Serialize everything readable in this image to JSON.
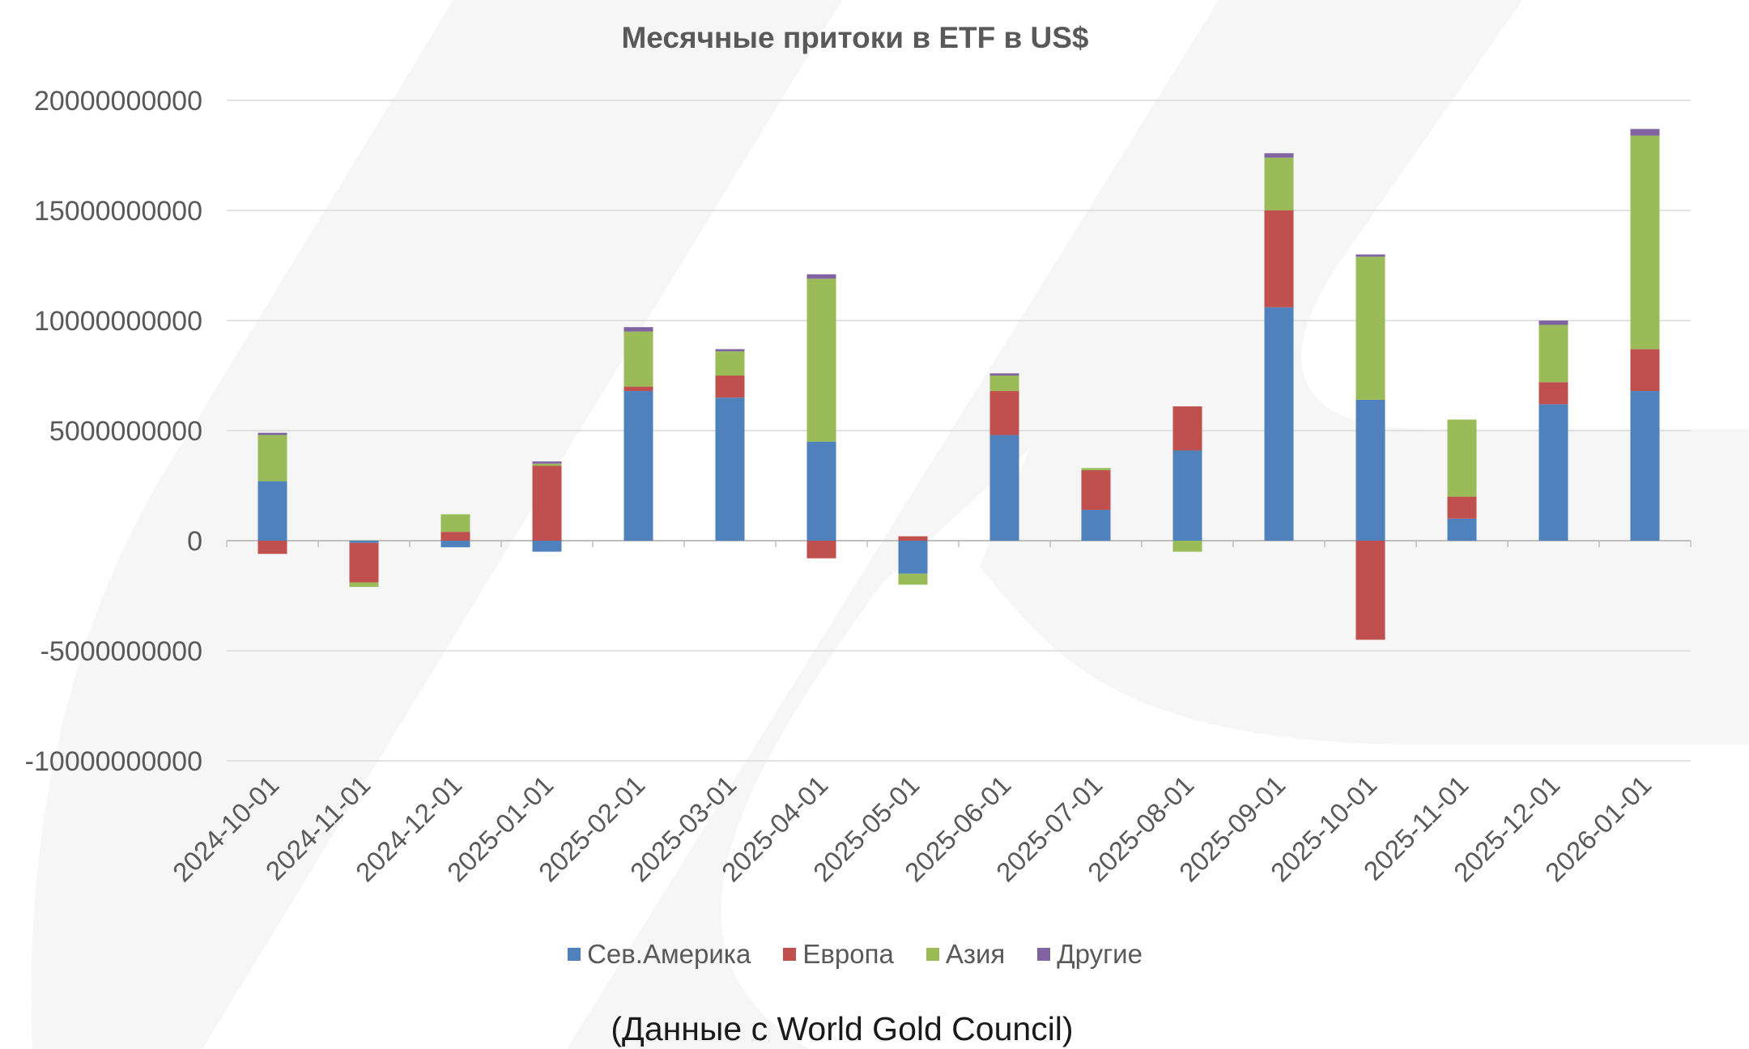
{
  "chart_data": {
    "type": "bar",
    "stacked": true,
    "title": "Месячные притоки в ETF в US$",
    "xlabel": "",
    "ylabel": "",
    "ylim": [
      -10000000000,
      20000000000
    ],
    "yticks": [
      20000000000,
      15000000000,
      10000000000,
      5000000000,
      0,
      -5000000000,
      -10000000000
    ],
    "ytick_labels": [
      "20000000000",
      "15000000000",
      "10000000000",
      "5000000000",
      "0",
      "-5000000000",
      "-10000000000"
    ],
    "grid": true,
    "legend_position": "bottom",
    "categories": [
      "2024-10-01",
      "2024-11-01",
      "2024-12-01",
      "2025-01-01",
      "2025-02-01",
      "2025-03-01",
      "2025-04-01",
      "2025-05-01",
      "2025-06-01",
      "2025-07-01",
      "2025-08-01",
      "2025-09-01",
      "2025-10-01",
      "2025-11-01",
      "2025-12-01",
      "2026-01-01"
    ],
    "series": [
      {
        "name": "Сев.Америка",
        "color": "#4f81bd",
        "values": [
          2700000000,
          -100000000,
          -300000000,
          -500000000,
          6800000000,
          6500000000,
          4500000000,
          -1500000000,
          4800000000,
          1400000000,
          4100000000,
          10600000000,
          6400000000,
          1000000000,
          6200000000,
          6800000000
        ]
      },
      {
        "name": "Европа",
        "color": "#c0504d",
        "values": [
          -600000000,
          -1800000000,
          400000000,
          3400000000,
          200000000,
          1000000000,
          -800000000,
          200000000,
          2000000000,
          1800000000,
          2000000000,
          4400000000,
          -4500000000,
          1000000000,
          1000000000,
          1900000000
        ]
      },
      {
        "name": "Азия",
        "color": "#9bbb59",
        "values": [
          2100000000,
          -200000000,
          800000000,
          100000000,
          2500000000,
          1100000000,
          7400000000,
          -500000000,
          700000000,
          100000000,
          -500000000,
          2400000000,
          6500000000,
          3500000000,
          2600000000,
          9700000000
        ]
      },
      {
        "name": "Другие",
        "color": "#8064a2",
        "values": [
          100000000,
          0,
          0,
          100000000,
          200000000,
          100000000,
          200000000,
          0,
          100000000,
          0,
          0,
          200000000,
          100000000,
          0,
          200000000,
          300000000
        ]
      }
    ]
  },
  "source_note": "(Данные с World Gold Council)"
}
